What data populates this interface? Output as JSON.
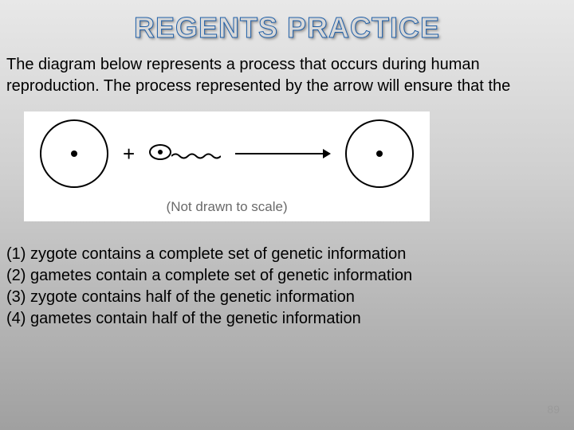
{
  "title": {
    "text": "REGENTS PRACTICE",
    "fontsize": 36,
    "color": "#d8d8d8",
    "stroke_color": "#1f5fa8"
  },
  "question": {
    "text": "The diagram below represents a process that occurs during human reproduction. The process represented by the arrow will ensure that the",
    "fontsize": 20,
    "color": "#000000"
  },
  "diagram": {
    "type": "infographic",
    "background_color": "#ffffff",
    "caption": "(Not drawn to scale)",
    "caption_fontsize": 17,
    "caption_color": "#6a6a6a",
    "egg1": {
      "diameter": 86,
      "border_color": "#000000",
      "border_width": 2,
      "dot_diameter": 8
    },
    "plus": {
      "symbol": "+",
      "fontsize": 26
    },
    "sperm": {
      "head_width": 28,
      "head_height": 20,
      "border_color": "#000000",
      "border_width": 2,
      "dot_diameter": 6,
      "tail_width": 62,
      "tail_height": 14,
      "tail_stroke": "#000000",
      "tail_stroke_width": 2
    },
    "arrow": {
      "length": 120,
      "stroke": "#000000",
      "stroke_width": 2,
      "head_size": 10
    },
    "egg2": {
      "diameter": 86,
      "border_color": "#000000",
      "border_width": 2,
      "dot_diameter": 8
    }
  },
  "answers": {
    "fontsize": 20,
    "color": "#000000",
    "items": [
      "(1) zygote contains a complete set of genetic information",
      "(2) gametes contain a complete set of genetic information",
      "(3) zygote contains half of the genetic information",
      "(4) gametes contain half of the genetic information"
    ]
  },
  "slide_number": {
    "text": "89",
    "fontsize": 14,
    "color": "#9a9a9a"
  }
}
